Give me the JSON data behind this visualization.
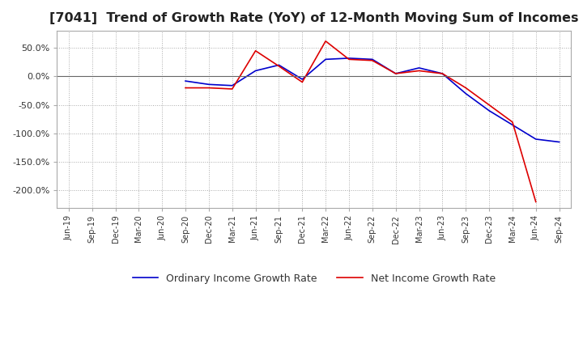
{
  "title": "[7041]  Trend of Growth Rate (YoY) of 12-Month Moving Sum of Incomes",
  "title_fontsize": 11.5,
  "ylim": [
    -230,
    80
  ],
  "yticks": [
    50,
    0,
    -50,
    -100,
    -150,
    -200
  ],
  "background_color": "#ffffff",
  "grid_color": "#aaaaaa",
  "ordinary_color": "#0000cc",
  "net_color": "#dd0000",
  "legend_labels": [
    "Ordinary Income Growth Rate",
    "Net Income Growth Rate"
  ],
  "x_labels": [
    "Jun-19",
    "Sep-19",
    "Dec-19",
    "Mar-20",
    "Jun-20",
    "Sep-20",
    "Dec-20",
    "Mar-21",
    "Jun-21",
    "Sep-21",
    "Dec-21",
    "Mar-22",
    "Jun-22",
    "Sep-22",
    "Dec-22",
    "Mar-23",
    "Jun-23",
    "Sep-23",
    "Dec-23",
    "Mar-24",
    "Jun-24",
    "Sep-24"
  ],
  "ordinary_income": [
    null,
    null,
    null,
    null,
    null,
    -8,
    -14,
    -16,
    10,
    20,
    -5,
    30,
    32,
    30,
    5,
    15,
    5,
    -30,
    -60,
    -85,
    -110,
    -115
  ],
  "net_income": [
    null,
    null,
    null,
    null,
    null,
    -20,
    -20,
    -22,
    45,
    18,
    -10,
    62,
    30,
    28,
    5,
    10,
    5,
    -20,
    -50,
    -80,
    -220,
    null
  ]
}
